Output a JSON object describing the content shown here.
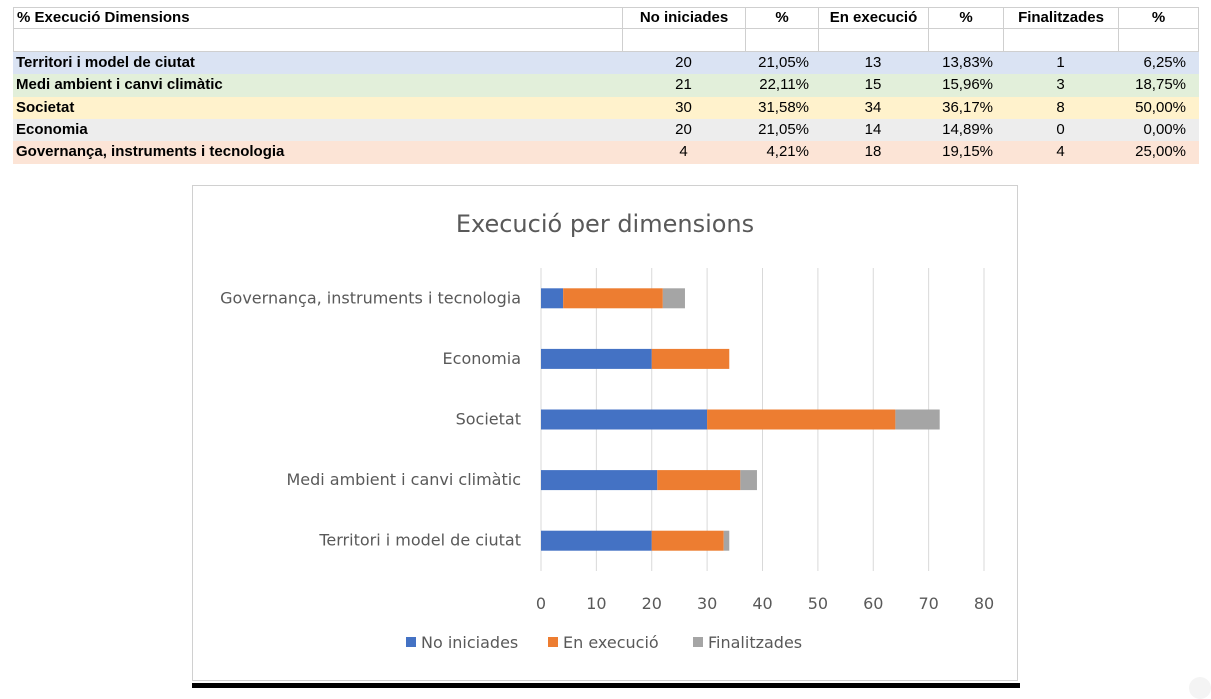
{
  "table": {
    "headers": [
      "% Execució Dimensions",
      "No iniciades",
      "%",
      "En execució",
      "%",
      "Finalitzades",
      "%"
    ],
    "rows": [
      {
        "name": "Territori i model de ciutat",
        "no_iniciades": "20",
        "pct_no": "21,05%",
        "en_execucio": "13",
        "pct_exec": "13,83%",
        "finalitzades": "1",
        "pct_fin": "6,25%",
        "color": "#dae3f3"
      },
      {
        "name": "Medi ambient i canvi climàtic",
        "no_iniciades": "21",
        "pct_no": "22,11%",
        "en_execucio": "15",
        "pct_exec": "15,96%",
        "finalitzades": "3",
        "pct_fin": "18,75%",
        "color": "#e2efda"
      },
      {
        "name": "Societat",
        "no_iniciades": "30",
        "pct_no": "31,58%",
        "en_execucio": "34",
        "pct_exec": "36,17%",
        "finalitzades": "8",
        "pct_fin": "50,00%",
        "color": "#fff2cc"
      },
      {
        "name": "Economia",
        "no_iniciades": "20",
        "pct_no": "21,05%",
        "en_execucio": "14",
        "pct_exec": "14,89%",
        "finalitzades": "0",
        "pct_fin": "0,00%",
        "color": "#ededed"
      },
      {
        "name": "Governança, instruments i tecnologia",
        "no_iniciades": "4",
        "pct_no": "4,21%",
        "en_execucio": "18",
        "pct_exec": "19,15%",
        "finalitzades": "4",
        "pct_fin": "25,00%",
        "color": "#fce4d6"
      }
    ]
  },
  "chart_data": {
    "type": "bar",
    "orientation": "horizontal",
    "stacked": true,
    "title": "Execució per dimensions",
    "categories": [
      "Territori i model de ciutat",
      "Medi ambient i canvi climàtic",
      "Societat",
      "Economia",
      "Governança, instruments i tecnologia"
    ],
    "series": [
      {
        "name": "No iniciades",
        "values": [
          20,
          21,
          30,
          20,
          4
        ],
        "color": "#4472c4"
      },
      {
        "name": "En execució",
        "values": [
          13,
          15,
          34,
          14,
          18
        ],
        "color": "#ed7d31"
      },
      {
        "name": "Finalitzades",
        "values": [
          1,
          3,
          8,
          0,
          4
        ],
        "color": "#a5a5a5"
      }
    ],
    "xlim": [
      0,
      80
    ],
    "xticks": [
      0,
      10,
      20,
      30,
      40,
      50,
      60,
      70,
      80
    ],
    "grid": true,
    "legend": "bottom"
  }
}
